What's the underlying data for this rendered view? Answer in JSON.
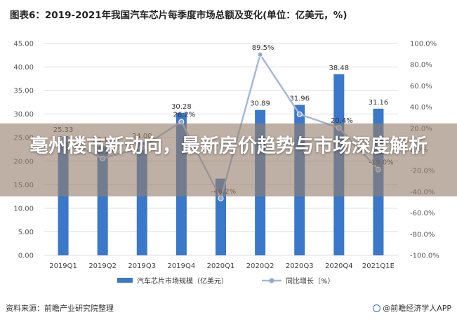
{
  "chart_data": {
    "type": "bar",
    "title": "图表6：2019-2021年我国汽车芯片每季度市场总额及变化(单位：亿美元，%)",
    "categories": [
      "2019Q1",
      "2019Q2",
      "2019Q3",
      "2019Q4",
      "2020Q1",
      "2020Q2",
      "2020Q3",
      "2020Q4",
      "2021Q1E"
    ],
    "series": [
      {
        "name": "汽车芯片市场规模（亿美元）",
        "type": "bar",
        "axis": "left",
        "color": "#3a78c9",
        "values": [
          25.33,
          23.18,
          24.0,
          30.28,
          16.3,
          30.89,
          31.96,
          38.48,
          31.16
        ],
        "labels": [
          "25.33",
          "23.18",
          "24.00",
          "30.28",
          "",
          "30.89",
          "31.96",
          "38.48",
          "31.16"
        ]
      },
      {
        "name": "同比增长（%）",
        "type": "line",
        "axis": "right",
        "color": "#a3b9dc",
        "values": [
          10.0,
          -8.5,
          2.0,
          26.2,
          -46.2,
          89.5,
          33.2,
          20.4,
          -19.0
        ],
        "labels": [
          "",
          "-8.5%",
          "",
          "26.2%",
          "-46.2%",
          "89.5%",
          "",
          "20.4%",
          "-19.0%"
        ]
      }
    ],
    "y_left": {
      "min": 0,
      "max": 45,
      "step": 5,
      "ticks": [
        "0.00",
        "5.00",
        "10.00",
        "15.00",
        "20.00",
        "25.00",
        "30.00",
        "35.00",
        "40.00",
        "45.00"
      ]
    },
    "y_right": {
      "min": -100,
      "max": 100,
      "step": 20,
      "ticks": [
        "-100.0%",
        "-80.0%",
        "-60.0%",
        "-40.0%",
        "-20.0%",
        "0.0%",
        "20.0%",
        "40.0%",
        "60.0%",
        "80.0%",
        "100.0%"
      ]
    },
    "grid": true,
    "legend_position": "bottom"
  },
  "overlay": {
    "headline": "亳州楼市新动向，最新房价趋势与市场深度解析"
  },
  "footer": {
    "source": "资料来源：前瞻产业研究院整理",
    "credit": "@前瞻经济学人APP"
  }
}
